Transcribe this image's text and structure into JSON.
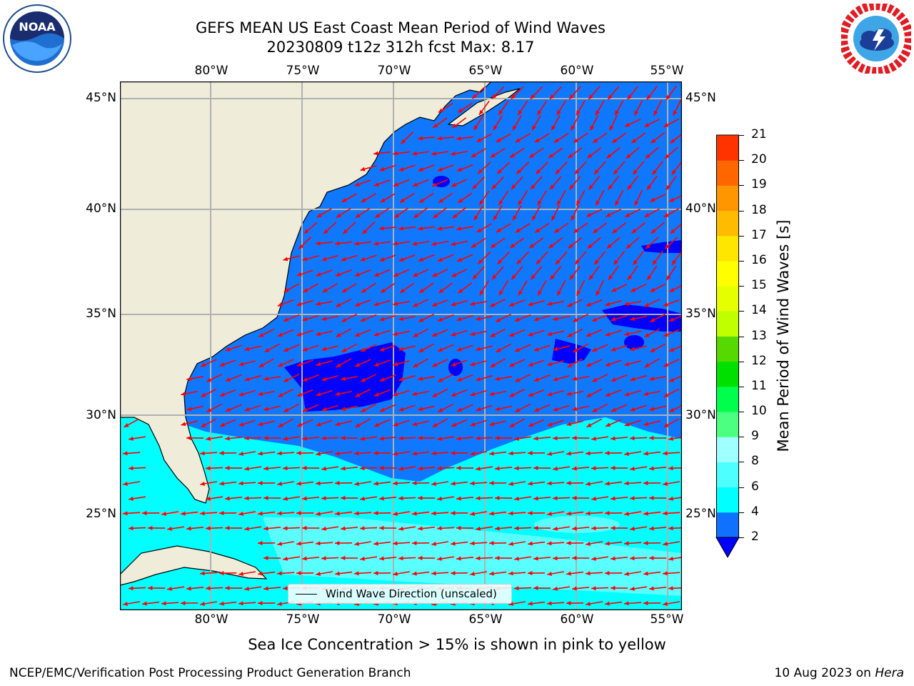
{
  "header": {
    "title_line1": "GEFS MEAN US East Coast Mean Period of Wind Waves",
    "title_line2": "20230809 t12z 312h fcst   Max: 8.17"
  },
  "logos": {
    "left": "noaa-logo",
    "right": "national-weather-service-logo",
    "noaa_text": "NOAA"
  },
  "map": {
    "lon_labels": [
      "80°W",
      "75°W",
      "70°W",
      "65°W",
      "60°W",
      "55°W"
    ],
    "lat_labels": [
      "45°N",
      "40°N",
      "35°N",
      "30°N",
      "25°N"
    ],
    "land_color": "#efedd9",
    "ocean_colors": {
      "2-4": "#0f78ff",
      "4-6": "#00ffff",
      "6-8": "#59ffff",
      "below-2": "#0000ff"
    },
    "arrow_color": "#ff0000",
    "grid_color": "#b0b0b0",
    "legend_label": "Wind Wave Direction (unscaled)"
  },
  "colorbar": {
    "title": "Mean Period of Wind Waves [s]",
    "ticks": [
      "2",
      "4",
      "6",
      "8",
      "9",
      "10",
      "11",
      "12",
      "13",
      "14",
      "15",
      "16",
      "17",
      "18",
      "19",
      "20",
      "21"
    ],
    "colors": [
      "#1070ff",
      "#00ffff",
      "#4dffff",
      "#a0ffff",
      "#4dff80",
      "#00ff4d",
      "#00e000",
      "#55d900",
      "#bfff00",
      "#e6ff00",
      "#ffff00",
      "#ffe600",
      "#ffbb00",
      "#ff9600",
      "#ff6600",
      "#ff3300",
      "#ff0000"
    ],
    "under_color": "#0000ff"
  },
  "footer": {
    "subtitle": "Sea Ice Concentration > 15% is shown in pink to yellow",
    "credit": "NCEP/EMC/Verification Post Processing Product Generation Branch",
    "date_prefix": "10 Aug 2023 on ",
    "machine": "Hera"
  }
}
